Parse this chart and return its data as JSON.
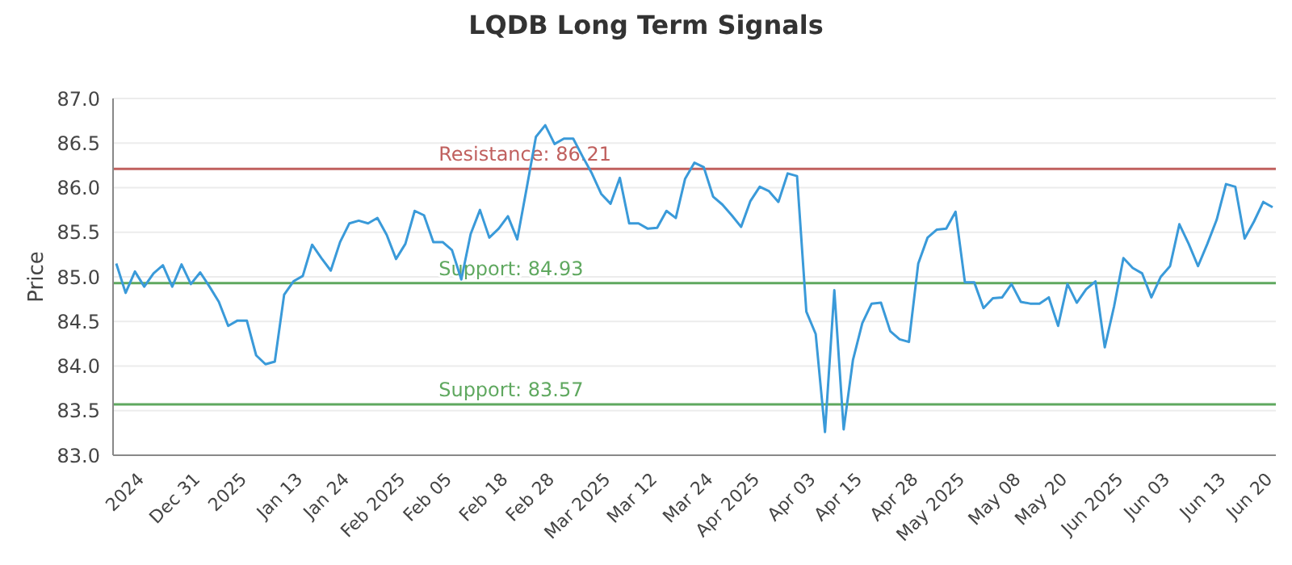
{
  "chart_data": {
    "type": "line",
    "title": "LQDB Long Term Signals",
    "ylabel": "Price",
    "categories": [
      null,
      null,
      null,
      "2024",
      null,
      null,
      null,
      null,
      null,
      "Dec 31",
      null,
      null,
      null,
      null,
      "2025",
      null,
      null,
      null,
      null,
      null,
      "Jan 13",
      null,
      null,
      null,
      null,
      "Jan 24",
      null,
      null,
      null,
      null,
      null,
      "Feb 2025",
      null,
      null,
      null,
      null,
      "Feb 05",
      null,
      null,
      null,
      null,
      null,
      "Feb 18",
      null,
      null,
      null,
      null,
      "Feb 28",
      null,
      null,
      null,
      null,
      null,
      "Mar 2025",
      null,
      null,
      null,
      null,
      "Mar 12",
      null,
      null,
      null,
      null,
      null,
      "Mar 24",
      null,
      null,
      null,
      null,
      "Apr 2025",
      null,
      null,
      null,
      null,
      null,
      "Apr 03",
      null,
      null,
      null,
      null,
      "Apr 15",
      null,
      null,
      null,
      null,
      null,
      "Apr 28",
      null,
      null,
      null,
      null,
      "May 2025",
      null,
      null,
      null,
      null,
      null,
      "May 08",
      null,
      null,
      null,
      null,
      "May 20",
      null,
      null,
      null,
      null,
      null,
      "Jun 2025",
      null,
      null,
      null,
      null,
      "Jun 03",
      null,
      null,
      null,
      null,
      null,
      "Jun 13",
      null,
      null,
      null,
      null,
      "Jun 20"
    ],
    "series": [
      {
        "color": "#3a9ad9",
        "values": [
          85.15,
          84.82,
          85.06,
          84.89,
          85.04,
          85.13,
          84.89,
          85.14,
          84.92,
          85.05,
          84.89,
          84.72,
          84.45,
          84.51,
          84.51,
          84.12,
          84.02,
          84.05,
          84.8,
          84.95,
          85.01,
          85.36,
          85.21,
          85.07,
          85.39,
          85.6,
          85.63,
          85.6,
          85.66,
          85.47,
          85.2,
          85.37,
          85.74,
          85.69,
          85.39,
          85.39,
          85.3,
          84.97,
          85.48,
          85.75,
          85.44,
          85.54,
          85.68,
          85.42,
          85.99,
          86.57,
          86.7,
          86.49,
          86.55,
          86.55,
          86.35,
          86.16,
          85.93,
          85.82,
          86.11,
          85.6,
          85.6,
          85.54,
          85.55,
          85.74,
          85.66,
          86.1,
          86.28,
          86.23,
          85.9,
          85.81,
          85.69,
          85.56,
          85.85,
          86.01,
          85.96,
          85.84,
          86.16,
          86.13,
          84.61,
          84.36,
          83.26,
          84.85,
          83.29,
          84.07,
          84.48,
          84.7,
          84.71,
          84.39,
          84.3,
          84.27,
          85.15,
          85.44,
          85.53,
          85.54,
          85.73,
          84.94,
          84.94,
          84.65,
          84.76,
          84.77,
          84.92,
          84.72,
          84.7,
          84.7,
          84.77,
          84.45,
          84.92,
          84.71,
          84.86,
          84.95,
          84.21,
          84.67,
          85.21,
          85.1,
          85.04,
          84.77,
          85.0,
          85.12,
          85.59,
          85.37,
          85.12,
          85.37,
          85.64,
          86.04,
          86.01,
          85.43,
          85.62,
          85.84,
          85.78
        ]
      }
    ],
    "ylim": [
      83,
      87
    ],
    "yticks": [
      {
        "value": 83,
        "label": "83.0"
      },
      {
        "value": 83.5,
        "label": "83.5"
      },
      {
        "value": 84,
        "label": "84.0"
      },
      {
        "value": 84.5,
        "label": "84.5"
      },
      {
        "value": 85,
        "label": "85.0"
      },
      {
        "value": 85.5,
        "label": "85.5"
      },
      {
        "value": 86,
        "label": "86.0"
      },
      {
        "value": 86.5,
        "label": "86.5"
      },
      {
        "value": 87,
        "label": "87.0"
      }
    ],
    "ref_lines": [
      {
        "axis": "y",
        "value": 86.21,
        "label": "Resistance: 86.21",
        "color": "#c0605e"
      },
      {
        "axis": "y",
        "value": 84.93,
        "label": "Support: 84.93",
        "color": "#5fa85f"
      },
      {
        "axis": "y",
        "value": 83.57,
        "label": "Support: 83.57",
        "color": "#5fa85f"
      }
    ],
    "grid": "y",
    "marker": "none",
    "line_style": "solid"
  }
}
